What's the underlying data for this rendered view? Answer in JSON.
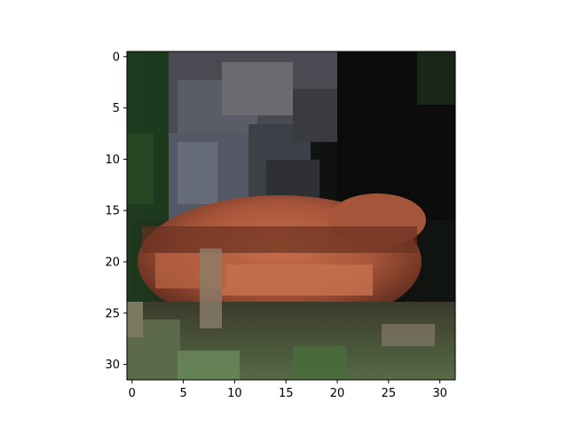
{
  "image": {
    "description_free": true,
    "grid_size": [
      32,
      32
    ]
  },
  "axes": {
    "x_ticks": [
      "0",
      "5",
      "10",
      "15",
      "20",
      "25",
      "30"
    ],
    "y_ticks": [
      "0",
      "5",
      "10",
      "15",
      "20",
      "25",
      "30"
    ],
    "x_range": [
      -0.5,
      31.5
    ],
    "y_range": [
      31.5,
      -0.5
    ]
  },
  "colors": {
    "frame": "#000000",
    "background": "#ffffff"
  }
}
